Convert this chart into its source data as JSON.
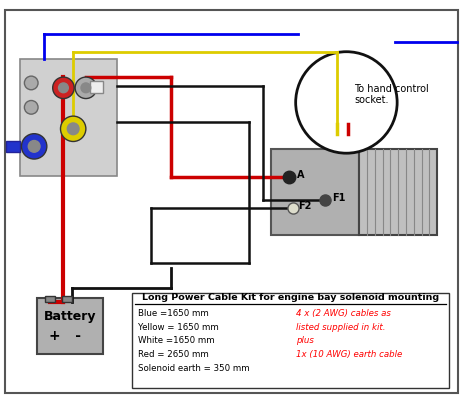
{
  "bg_color": "#f0f0f0",
  "border_color": "#555555",
  "text_legend_title": "Long Power Cable Kit for engine bay solenoid mounting",
  "text_legend_lines": [
    "Blue =1650 mm",
    "Yellow = 1650 mm",
    "White =1650 mm",
    "Red = 2650 mm",
    "Solenoid earth = 350 mm"
  ],
  "text_legend_red": "4 x (2 AWG) cables as\nlisted supplied in kit.\nplus\n1x (10 AWG) earth cable",
  "text_hand_control": "To hand control\nsocket.",
  "wire_blue_color": "#0000ee",
  "wire_red_color": "#cc0000",
  "wire_yellow_color": "#ddcc00",
  "wire_white_color": "#cccccc",
  "wire_black_color": "#111111"
}
